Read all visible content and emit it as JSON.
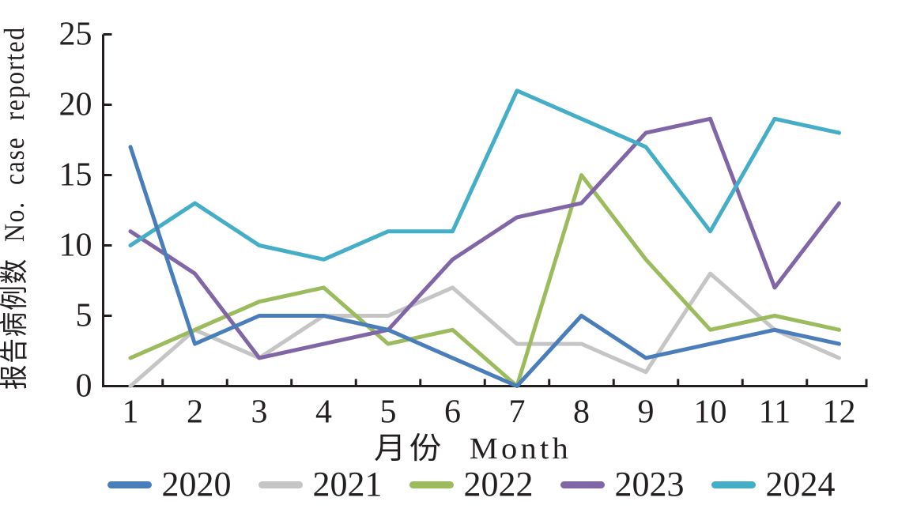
{
  "chart_data": {
    "type": "line",
    "title": "",
    "xlabel": "月份  Month",
    "ylabel": "报告病例数  No. case reported",
    "x": [
      1,
      2,
      3,
      4,
      5,
      6,
      7,
      8,
      9,
      10,
      11,
      12
    ],
    "xlim": [
      0.5,
      12.5
    ],
    "ylim": [
      0,
      25
    ],
    "yticks": [
      0,
      5,
      10,
      15,
      20,
      25
    ],
    "grid": false,
    "legend_position": "bottom",
    "axis_color": "#231f20",
    "series": [
      {
        "name": "2020",
        "color": "#4A7EBB",
        "values": [
          17,
          3,
          5,
          5,
          4,
          2,
          0,
          5,
          2,
          3,
          4,
          3
        ]
      },
      {
        "name": "2021",
        "color": "#C5C5C5",
        "values": [
          0,
          4,
          2,
          5,
          5,
          7,
          3,
          3,
          1,
          8,
          4,
          2
        ]
      },
      {
        "name": "2022",
        "color": "#9CBB5C",
        "values": [
          2,
          4,
          6,
          7,
          3,
          4,
          0,
          15,
          9,
          4,
          5,
          4
        ]
      },
      {
        "name": "2023",
        "color": "#8066A6",
        "values": [
          11,
          8,
          2,
          3,
          4,
          9,
          12,
          13,
          18,
          19,
          7,
          13
        ]
      },
      {
        "name": "2024",
        "color": "#43AEC6",
        "values": [
          10,
          13,
          10,
          9,
          11,
          11,
          21,
          19,
          17,
          11,
          19,
          18
        ]
      }
    ]
  }
}
